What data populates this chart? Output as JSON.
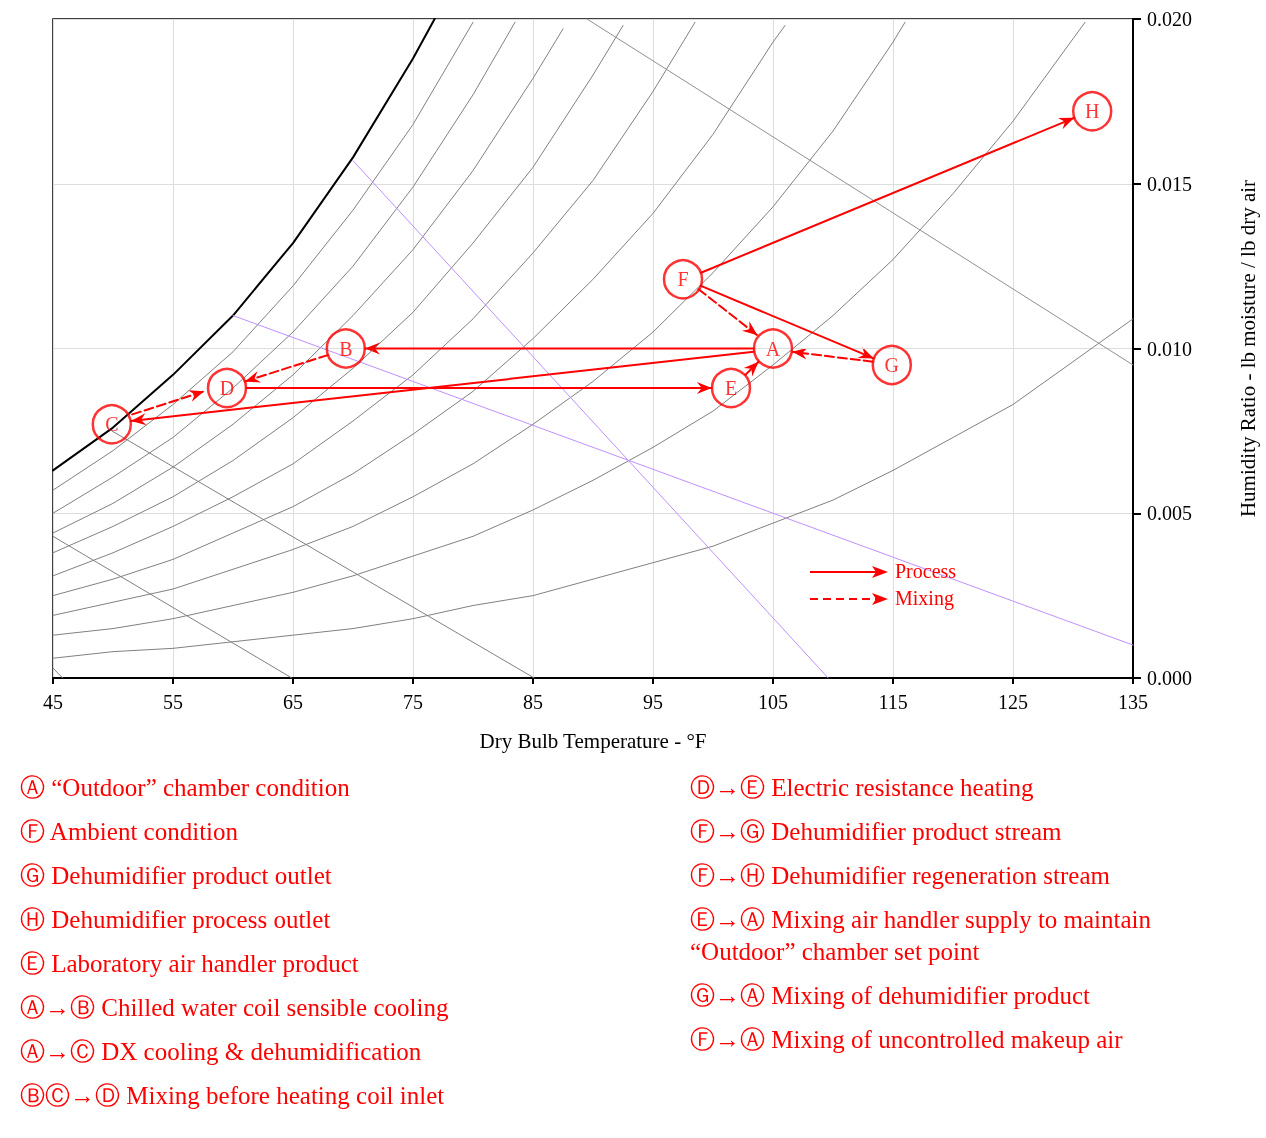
{
  "chart_data": {
    "type": "line",
    "xlabel": "Dry Bulb Temperature - °F",
    "ylabel": "Humidity Ratio - lb moisture / lb dry air",
    "xlim": [
      45,
      135
    ],
    "xticks": [
      45,
      55,
      65,
      75,
      85,
      95,
      105,
      115,
      125,
      135
    ],
    "ylim": [
      0,
      0.02
    ],
    "yticks": [
      {
        "value": 0,
        "label": "0.000"
      },
      {
        "value": 0.005,
        "label": "0.005"
      },
      {
        "value": 0.01,
        "label": "0.010"
      },
      {
        "value": 0.015,
        "label": "0.015"
      },
      {
        "value": 0.02,
        "label": "0.020"
      }
    ],
    "grid": true,
    "legend": "bottom right",
    "marker": "none",
    "line_style": "solid",
    "annotations": [
      "Ⓐ “Outdoor” chamber condition",
      "Ⓕ Ambient condition",
      "Ⓖ Dehumidifier product outlet",
      "Ⓗ Dehumidifier process outlet",
      "Ⓔ Laboratory air handler product",
      "Ⓐ→Ⓑ Chilled water coil sensible cooling",
      "Ⓐ→Ⓒ DX cooling & dehumidification",
      "ⒷⒸ→Ⓓ Mixing before heating coil inlet",
      "Ⓓ→Ⓔ Electric resistance heating",
      "Ⓕ→Ⓖ Dehumidifier product stream",
      "Ⓕ→Ⓗ Dehumidifier regeneration stream",
      "Ⓔ→Ⓐ Mixing air handler supply to maintain “Outdoor” chamber set point",
      "Ⓖ→Ⓐ Mixing of dehumidifier product",
      "Ⓕ→Ⓐ Mixing of uncontrolled makeup air"
    ],
    "series": [
      {
        "color": "#000000",
        "x": [
          45,
          50,
          55,
          60,
          65,
          70,
          75,
          76.8
        ],
        "values": [
          0.0063,
          0.0076,
          0.0092,
          0.011,
          0.0132,
          0.0158,
          0.0188,
          0.02
        ]
      },
      {
        "color": "#808080",
        "x": [
          45,
          50,
          55,
          60,
          65,
          70,
          75,
          80
        ],
        "values": [
          0.0057,
          0.0069,
          0.0083,
          0.0099,
          0.0119,
          0.0142,
          0.0168,
          0.0199
        ]
      },
      {
        "color": "#808080",
        "x": [
          45,
          50,
          55,
          60,
          65,
          70,
          75,
          80,
          83.5
        ],
        "values": [
          0.005,
          0.0061,
          0.0073,
          0.0088,
          0.0105,
          0.0125,
          0.0149,
          0.0177,
          0.0199
        ]
      },
      {
        "color": "#808080",
        "x": [
          45,
          50,
          55,
          60,
          65,
          70,
          75,
          80,
          85,
          87.5
        ],
        "values": [
          0.0044,
          0.0053,
          0.0064,
          0.0077,
          0.0092,
          0.011,
          0.013,
          0.0154,
          0.0182,
          0.0197
        ]
      },
      {
        "color": "#808080",
        "x": [
          45,
          50,
          55,
          60,
          65,
          70,
          75,
          80,
          85,
          90,
          92.5
        ],
        "values": [
          0.0038,
          0.0046,
          0.0055,
          0.0066,
          0.0079,
          0.0094,
          0.0111,
          0.0132,
          0.0155,
          0.0183,
          0.0198
        ]
      },
      {
        "color": "#808080",
        "x": [
          45,
          50,
          55,
          60,
          65,
          70,
          75,
          80,
          85,
          90,
          95,
          98.5
        ],
        "values": [
          0.0031,
          0.0038,
          0.0046,
          0.0055,
          0.0065,
          0.0078,
          0.0092,
          0.0109,
          0.0129,
          0.0151,
          0.0178,
          0.0199
        ]
      },
      {
        "color": "#808080",
        "x": [
          45,
          50,
          55,
          60,
          65,
          70,
          75,
          80,
          85,
          90,
          95,
          100,
          105,
          106
        ],
        "values": [
          0.0025,
          0.003,
          0.0036,
          0.0044,
          0.0052,
          0.0062,
          0.0074,
          0.0087,
          0.0103,
          0.0121,
          0.0141,
          0.0165,
          0.0193,
          0.0198
        ]
      },
      {
        "color": "#808080",
        "x": [
          45,
          50,
          55,
          60,
          65,
          70,
          75,
          80,
          85,
          90,
          95,
          100,
          105,
          110,
          115,
          116
        ],
        "values": [
          0.0019,
          0.0023,
          0.0027,
          0.0033,
          0.0039,
          0.0046,
          0.0055,
          0.0065,
          0.0077,
          0.009,
          0.0105,
          0.0123,
          0.0143,
          0.0166,
          0.0193,
          0.0199
        ]
      },
      {
        "color": "#808080",
        "x": [
          45,
          50,
          55,
          60,
          65,
          70,
          75,
          80,
          85,
          90,
          95,
          100,
          105,
          110,
          115,
          120,
          125,
          130,
          131
        ],
        "values": [
          0.0013,
          0.0015,
          0.0018,
          0.0022,
          0.0026,
          0.0031,
          0.0037,
          0.0043,
          0.0051,
          0.006,
          0.007,
          0.0081,
          0.0095,
          0.011,
          0.0127,
          0.0147,
          0.0169,
          0.0194,
          0.0199
        ]
      },
      {
        "color": "#808080",
        "x": [
          45,
          50,
          55,
          60,
          65,
          70,
          75,
          80,
          85,
          90,
          95,
          100,
          105,
          110,
          115,
          120,
          125,
          130,
          135
        ],
        "values": [
          0.0006,
          0.0008,
          0.0009,
          0.0011,
          0.0013,
          0.0015,
          0.0018,
          0.0022,
          0.0025,
          0.003,
          0.0035,
          0.004,
          0.0047,
          0.0054,
          0.0063,
          0.0073,
          0.0083,
          0.0096,
          0.0109
        ]
      },
      {
        "color": "#808080",
        "x": [
          49.9,
          85.1
        ],
        "values": [
          0.0075,
          0
        ]
      },
      {
        "color": "#808080",
        "x": [
          45,
          64.9
        ],
        "values": [
          0.0043,
          0
        ]
      },
      {
        "color": "#808080",
        "x": [
          45,
          45.8
        ],
        "values": [
          0.0003,
          0
        ]
      },
      {
        "color": "#909090",
        "x": [
          89.5,
          135
        ],
        "values": [
          0.02,
          0.0095
        ]
      },
      {
        "color": "#bf8fff",
        "x": [
          70,
          109.6
        ],
        "values": [
          0.0157,
          0
        ]
      },
      {
        "color": "#bf8fff",
        "x": [
          60,
          135
        ],
        "values": [
          0.011,
          0.001
        ]
      },
      {
        "name": "Process",
        "color": "#ff0000",
        "line_style": "solid",
        "x": [
          103.4,
          71.0,
          null,
          103.4,
          51.5,
          null,
          61.1,
          99.9,
          null,
          99.0,
          113.4,
          null,
          99.0,
          130.1
        ],
        "values": [
          0.01,
          0.01,
          null,
          0.0099,
          0.0078,
          null,
          0.0088,
          0.0088,
          null,
          0.0119,
          0.0097,
          null,
          0.0123,
          0.017
        ]
      },
      {
        "name": "Mixing",
        "color": "#ff0000",
        "line_style": "dashed",
        "x": [
          102.7,
          103.8,
          null,
          113.3,
          106.6,
          null,
          98.8,
          103.7,
          null,
          67.9,
          61.0,
          null,
          51.6,
          57.6
        ],
        "values": [
          0.0092,
          0.0096,
          null,
          0.0096,
          0.0099,
          null,
          0.0118,
          0.0104,
          null,
          0.0098,
          0.009,
          null,
          0.008,
          0.0087
        ]
      },
      {
        "type": "scatter",
        "color": "#ff0000",
        "marker": "circle",
        "x": [
          105,
          69.4,
          49.9,
          59.5,
          101.5,
          97.5,
          114.9,
          131.6
        ],
        "values": [
          0.01,
          0.01,
          0.0077,
          0.0088,
          0.0088,
          0.0121,
          0.0095,
          0.0172
        ],
        "value_labels": [
          "A",
          "B",
          "C",
          "D",
          "E",
          "F",
          "G",
          "H"
        ]
      }
    ]
  }
}
